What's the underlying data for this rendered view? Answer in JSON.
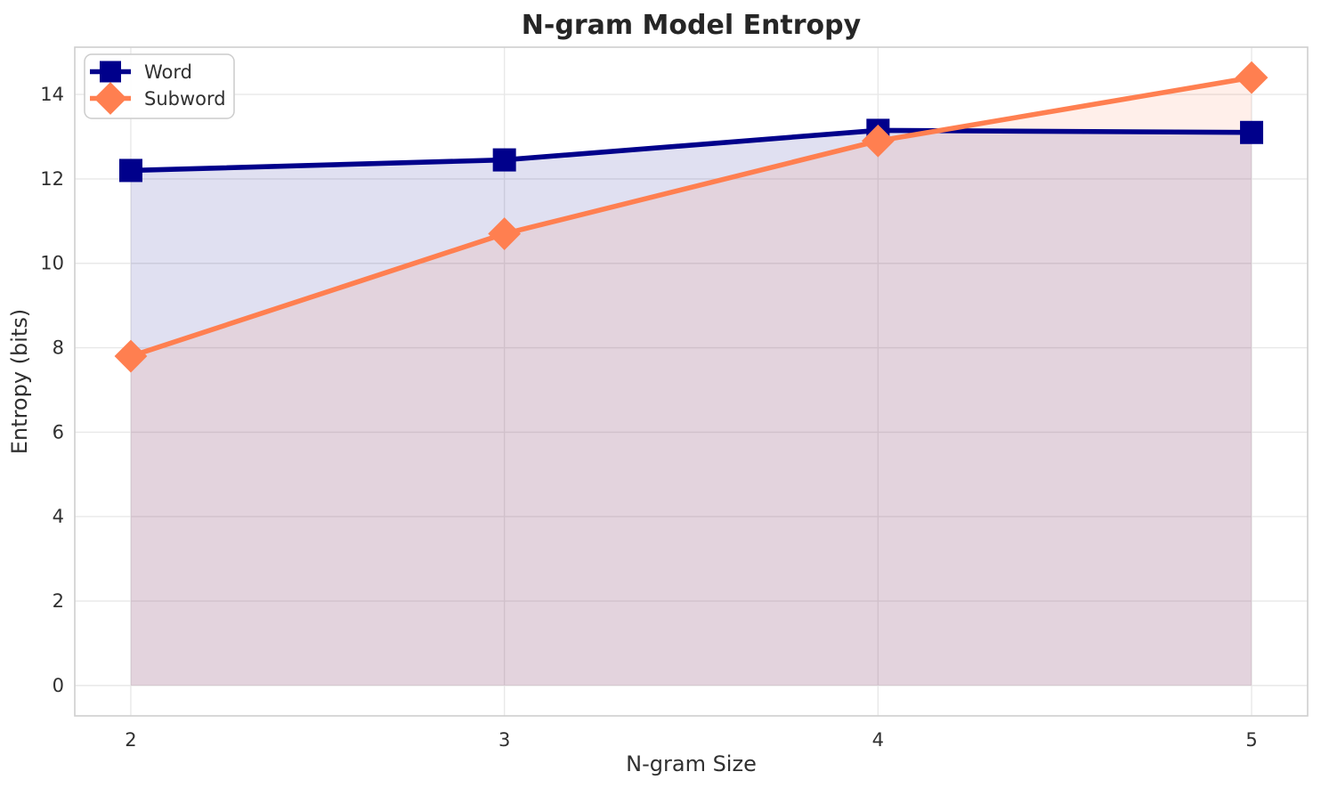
{
  "chart_data": {
    "type": "line",
    "title": "N-gram Model Entropy",
    "xlabel": "N-gram Size",
    "ylabel": "Entropy (bits)",
    "x": [
      2,
      3,
      4,
      5
    ],
    "series": [
      {
        "name": "Word",
        "color": "#00008B",
        "marker": "square",
        "values": [
          12.2,
          12.45,
          13.15,
          13.1
        ]
      },
      {
        "name": "Subword",
        "color": "#FF7F50",
        "marker": "diamond",
        "values": [
          7.8,
          10.7,
          12.9,
          14.4
        ]
      }
    ],
    "fill_to_zero": true,
    "fill_opacity": 0.12,
    "xlim": [
      1.85,
      5.15
    ],
    "ylim": [
      -0.72,
      15.12
    ],
    "xticks": [
      2,
      3,
      4,
      5
    ],
    "yticks": [
      0,
      2,
      4,
      6,
      8,
      10,
      12,
      14
    ],
    "grid": true,
    "legend_position": "upper-left",
    "colors": {
      "grid": "#e8e8e8",
      "spine": "#cfcfcf",
      "tick_text": "#303030",
      "title_text": "#262626",
      "legend_border": "#cccccc",
      "background": "#ffffff"
    }
  }
}
